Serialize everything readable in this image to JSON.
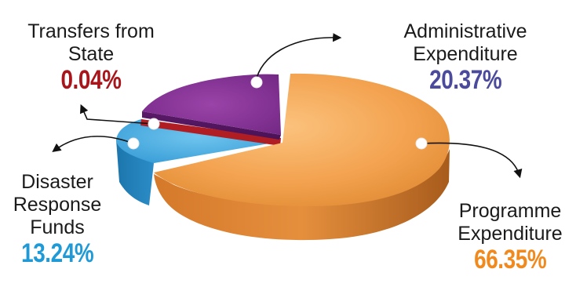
{
  "chart_data": {
    "type": "pie",
    "slices": [
      {
        "label": [
          "Programme",
          "Expenditure"
        ],
        "value": 66.35,
        "display": "66.35%",
        "color": "#f0a04a"
      },
      {
        "label": [
          "Disaster",
          "Response",
          "Funds"
        ],
        "value": 13.24,
        "display": "13.24%",
        "color": "#3ea6dc"
      },
      {
        "label": [
          "Transfers from",
          "State"
        ],
        "value": 0.04,
        "display": "0.04%",
        "color": "#b01e24"
      },
      {
        "label": [
          "Administrative",
          "Expenditure"
        ],
        "value": 20.37,
        "display": "20.37%",
        "color": "#7d2f8c"
      }
    ],
    "label_colors": {
      "programme": "#f08a1e",
      "disaster": "#1f9ad6",
      "transfers": "#a8151b",
      "administrative": "#4b4a9c"
    }
  }
}
